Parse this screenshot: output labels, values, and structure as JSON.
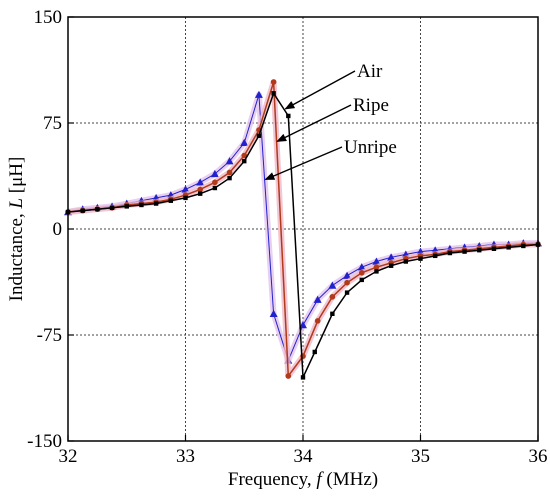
{
  "chart_data": {
    "type": "line",
    "title": "",
    "xlabel": {
      "prefix": "Frequency, ",
      "symbol": "f",
      "unit": " (MHz)"
    },
    "ylabel": {
      "prefix": "Inductance, ",
      "symbol": "L",
      "unit": " [μH]"
    },
    "xlim": [
      32,
      36
    ],
    "ylim": [
      -150,
      150
    ],
    "xticks": [
      32,
      33,
      34,
      35,
      36
    ],
    "yticks": [
      150,
      75,
      0,
      -75,
      -150
    ],
    "grid": true,
    "series": [
      {
        "name": "Air",
        "color": "#000000",
        "marker": "square",
        "points": [
          [
            32.0,
            12
          ],
          [
            32.125,
            13
          ],
          [
            32.25,
            14
          ],
          [
            32.375,
            15
          ],
          [
            32.5,
            16
          ],
          [
            32.625,
            17
          ],
          [
            32.75,
            18
          ],
          [
            32.875,
            20
          ],
          [
            33.0,
            22
          ],
          [
            33.125,
            25
          ],
          [
            33.25,
            29
          ],
          [
            33.375,
            36
          ],
          [
            33.5,
            48
          ],
          [
            33.625,
            66
          ],
          [
            33.75,
            96
          ],
          [
            33.875,
            80
          ],
          [
            34.0,
            -105
          ],
          [
            34.1,
            -87
          ],
          [
            34.25,
            -60
          ],
          [
            34.375,
            -45
          ],
          [
            34.5,
            -36
          ],
          [
            34.625,
            -30
          ],
          [
            34.75,
            -26
          ],
          [
            34.875,
            -23
          ],
          [
            35.0,
            -21
          ],
          [
            35.125,
            -19
          ],
          [
            35.25,
            -17
          ],
          [
            35.375,
            -16
          ],
          [
            35.5,
            -15
          ],
          [
            35.625,
            -14
          ],
          [
            35.75,
            -13
          ],
          [
            35.875,
            -12
          ],
          [
            36.0,
            -11
          ]
        ]
      },
      {
        "name": "Ripe",
        "color": "#b03a1a",
        "marker": "circle",
        "points": [
          [
            32.0,
            12
          ],
          [
            32.125,
            13
          ],
          [
            32.25,
            14
          ],
          [
            32.375,
            15
          ],
          [
            32.5,
            17
          ],
          [
            32.625,
            18
          ],
          [
            32.75,
            19
          ],
          [
            32.875,
            21
          ],
          [
            33.0,
            24
          ],
          [
            33.125,
            28
          ],
          [
            33.25,
            33
          ],
          [
            33.375,
            40
          ],
          [
            33.5,
            52
          ],
          [
            33.625,
            70
          ],
          [
            33.75,
            104
          ],
          [
            33.875,
            -104
          ],
          [
            34.0,
            -90
          ],
          [
            34.125,
            -65
          ],
          [
            34.25,
            -48
          ],
          [
            34.375,
            -38
          ],
          [
            34.5,
            -31
          ],
          [
            34.625,
            -27
          ],
          [
            34.75,
            -24
          ],
          [
            34.875,
            -21
          ],
          [
            35.0,
            -19
          ],
          [
            35.125,
            -18
          ],
          [
            35.25,
            -16
          ],
          [
            35.375,
            -15
          ],
          [
            35.5,
            -14
          ],
          [
            35.625,
            -13
          ],
          [
            35.75,
            -12
          ],
          [
            35.875,
            -11
          ],
          [
            36.0,
            -11
          ]
        ]
      },
      {
        "name": "Unripe",
        "color": "#2222cc",
        "marker": "triangle",
        "points": [
          [
            32.0,
            12
          ],
          [
            32.125,
            14
          ],
          [
            32.25,
            15
          ],
          [
            32.375,
            16
          ],
          [
            32.5,
            18
          ],
          [
            32.625,
            20
          ],
          [
            32.75,
            22
          ],
          [
            32.875,
            24
          ],
          [
            33.0,
            28
          ],
          [
            33.125,
            33
          ],
          [
            33.25,
            39
          ],
          [
            33.375,
            48
          ],
          [
            33.5,
            61
          ],
          [
            33.625,
            95
          ],
          [
            33.75,
            -60
          ],
          [
            33.875,
            -93
          ],
          [
            34.0,
            -68
          ],
          [
            34.125,
            -50
          ],
          [
            34.25,
            -40
          ],
          [
            34.375,
            -33
          ],
          [
            34.5,
            -27
          ],
          [
            34.625,
            -23
          ],
          [
            34.75,
            -20
          ],
          [
            34.875,
            -18
          ],
          [
            35.0,
            -16
          ],
          [
            35.125,
            -15
          ],
          [
            35.25,
            -14
          ],
          [
            35.375,
            -13
          ],
          [
            35.5,
            -12
          ],
          [
            35.625,
            -11
          ],
          [
            35.75,
            -11
          ],
          [
            35.875,
            -10
          ],
          [
            36.0,
            -10
          ]
        ]
      }
    ],
    "annotations": [
      {
        "text": "Air",
        "series": "Air",
        "target": [
          33.85,
          85
        ]
      },
      {
        "text": "Ripe",
        "series": "Ripe",
        "target": [
          33.78,
          62
        ]
      },
      {
        "text": "Unripe",
        "series": "Unripe",
        "target": [
          33.68,
          35
        ]
      }
    ]
  }
}
